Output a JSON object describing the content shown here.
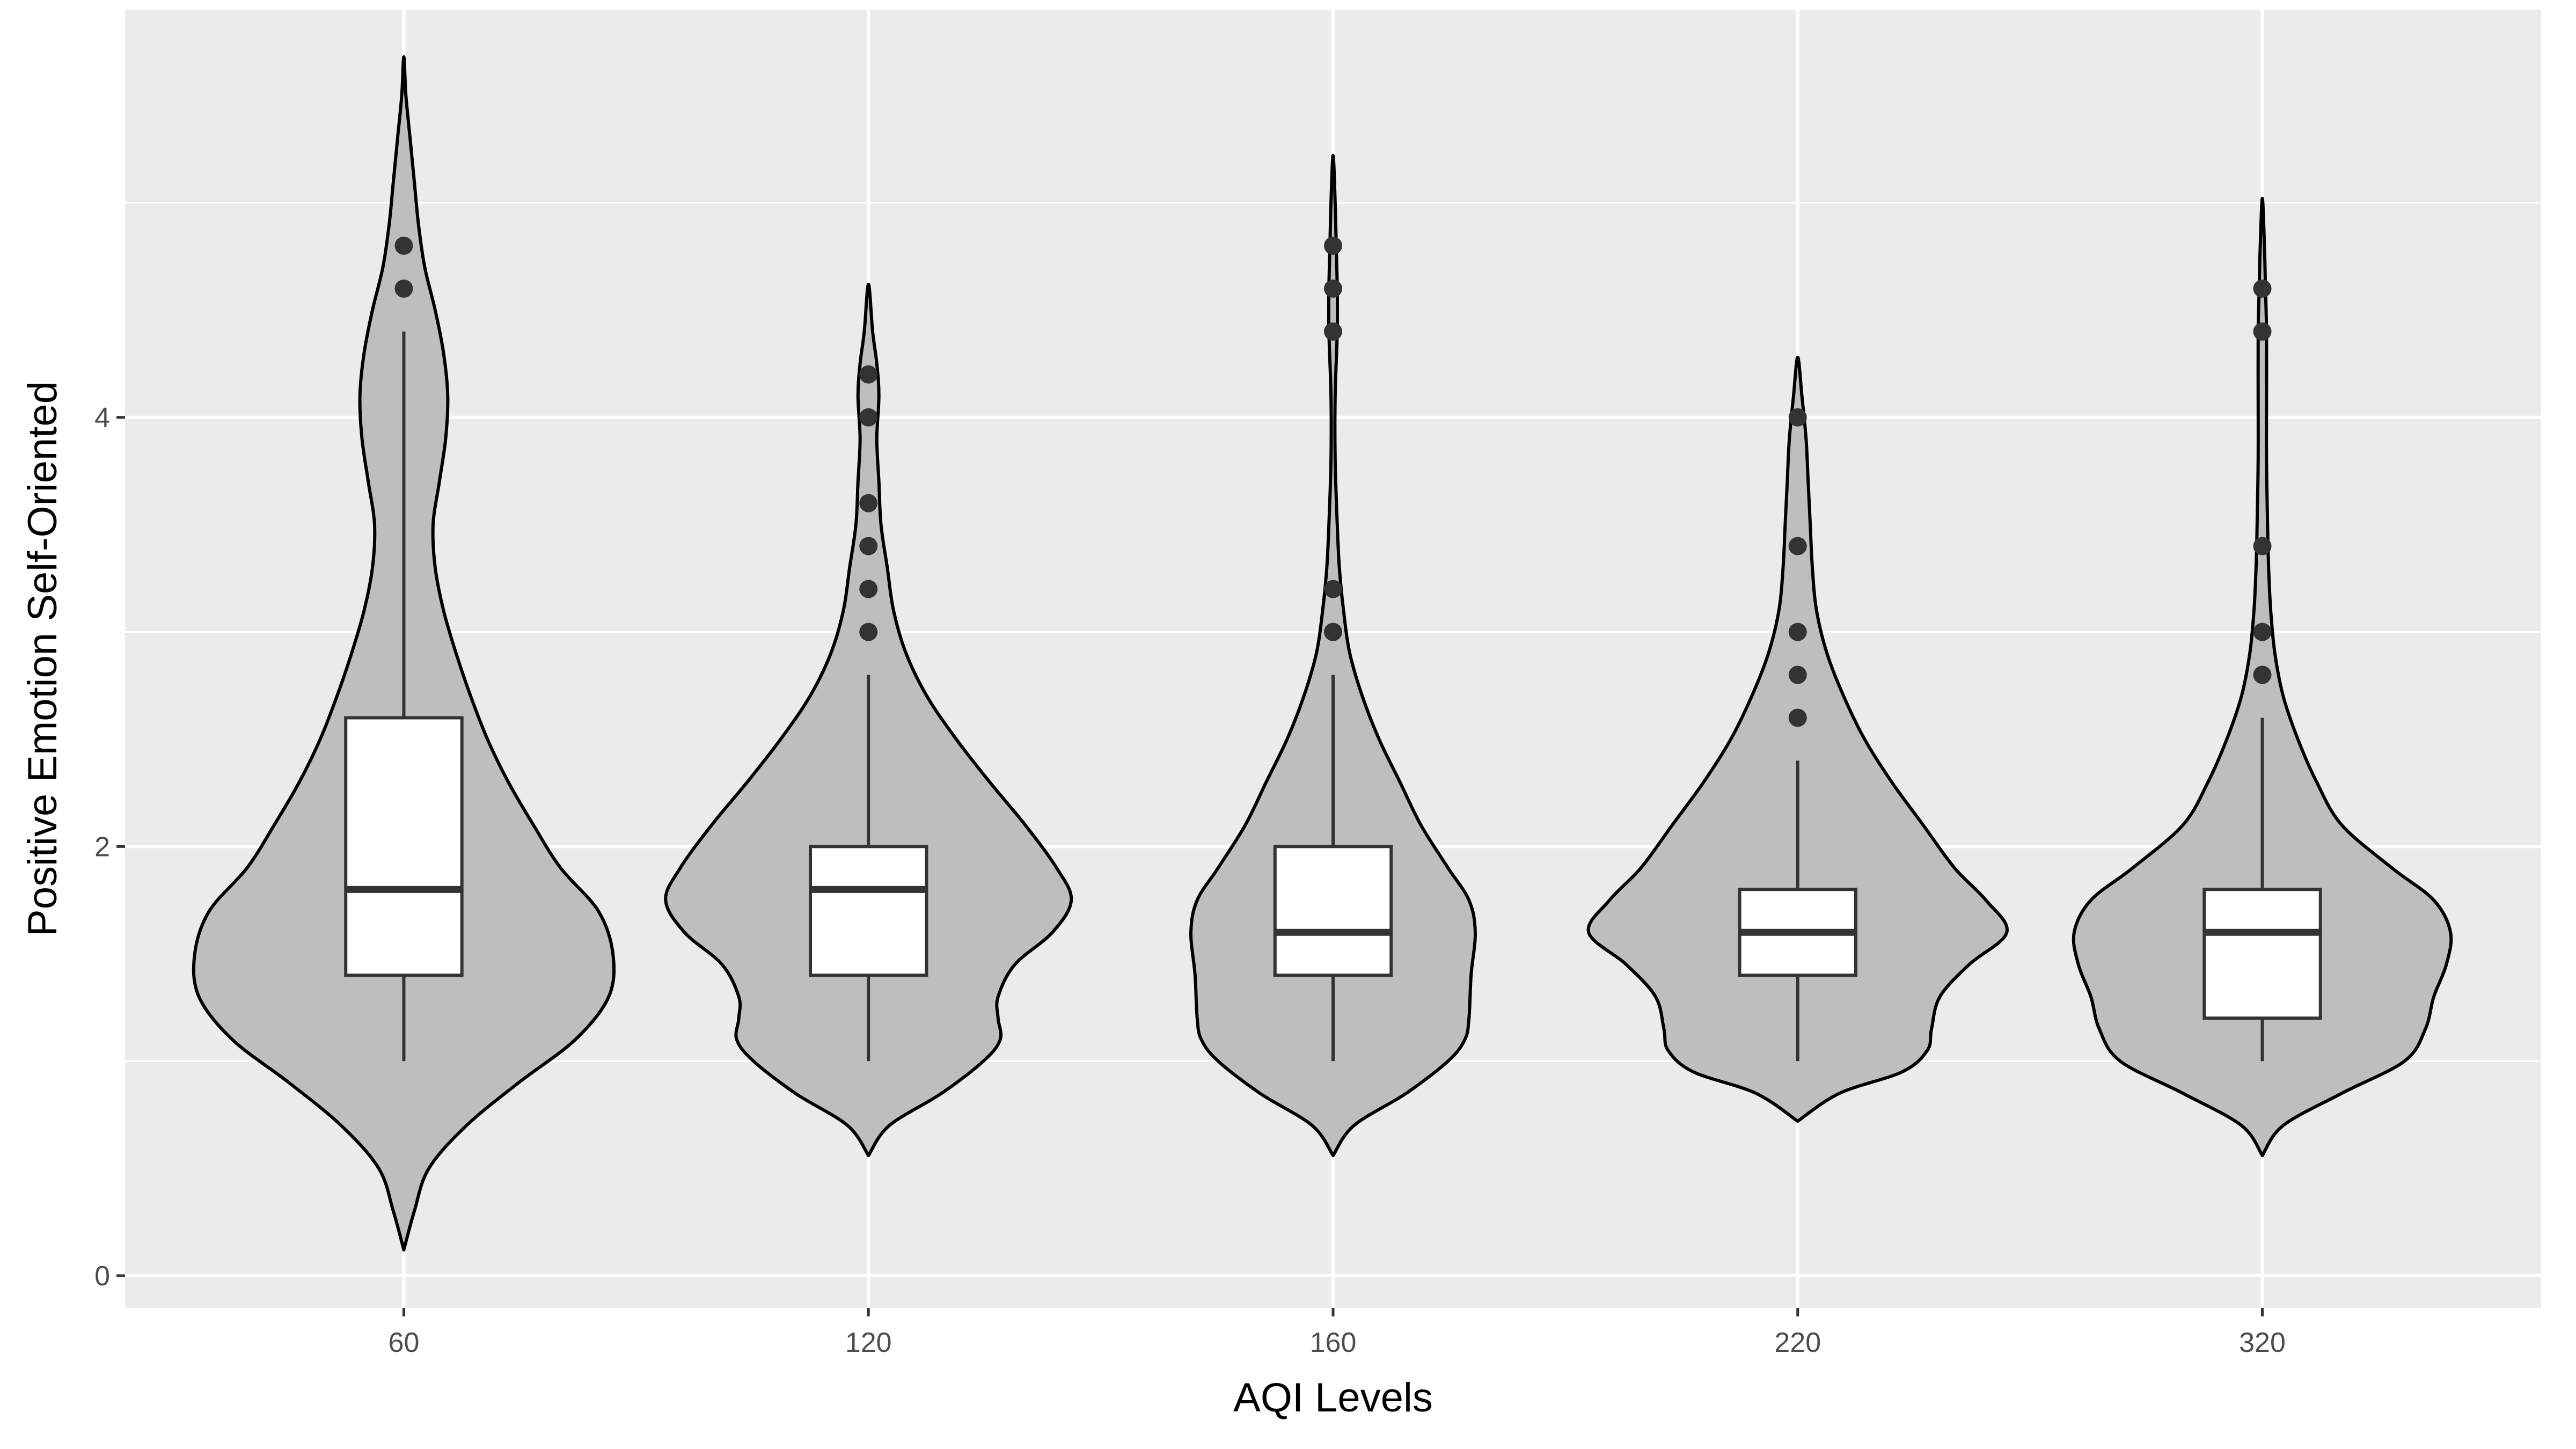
{
  "chart_data": {
    "type": "violin",
    "xlabel": "AQI Levels",
    "ylabel": "Positive Emotion Self-Oriented",
    "categories": [
      "60",
      "120",
      "160",
      "220",
      "320"
    ],
    "y_ticks": [
      "0",
      "2",
      "4"
    ],
    "y_tick_values": [
      0,
      2,
      4
    ],
    "ylim": [
      -0.15,
      5.9
    ],
    "grid": true,
    "panel_background": "#ebebeb",
    "violin_fill": "#bebebe",
    "box_fill": "#ffffff",
    "outline_color": "#000000",
    "outlier_color": "#333333",
    "groups": [
      {
        "category": "60",
        "violin_profile": [
          [
            0.12,
            0.0
          ],
          [
            0.3,
            0.05
          ],
          [
            0.5,
            0.12
          ],
          [
            0.7,
            0.3
          ],
          [
            0.9,
            0.55
          ],
          [
            1.1,
            0.82
          ],
          [
            1.3,
            0.98
          ],
          [
            1.5,
            1.0
          ],
          [
            1.7,
            0.93
          ],
          [
            1.9,
            0.75
          ],
          [
            2.1,
            0.62
          ],
          [
            2.3,
            0.5
          ],
          [
            2.5,
            0.4
          ],
          [
            2.7,
            0.32
          ],
          [
            2.9,
            0.25
          ],
          [
            3.1,
            0.19
          ],
          [
            3.3,
            0.15
          ],
          [
            3.5,
            0.14
          ],
          [
            3.7,
            0.17
          ],
          [
            3.9,
            0.2
          ],
          [
            4.1,
            0.21
          ],
          [
            4.3,
            0.19
          ],
          [
            4.5,
            0.15
          ],
          [
            4.7,
            0.1
          ],
          [
            4.9,
            0.07
          ],
          [
            5.1,
            0.05
          ],
          [
            5.3,
            0.03
          ],
          [
            5.5,
            0.01
          ],
          [
            5.68,
            0.0
          ]
        ],
        "box": {
          "whisker_low": 1.0,
          "q1": 1.4,
          "median": 1.8,
          "q3": 2.6,
          "whisker_high": 4.4
        },
        "outliers": [
          4.6,
          4.8
        ]
      },
      {
        "category": "120",
        "violin_profile": [
          [
            0.56,
            0.0
          ],
          [
            0.7,
            0.1
          ],
          [
            0.85,
            0.35
          ],
          [
            1.0,
            0.55
          ],
          [
            1.1,
            0.63
          ],
          [
            1.2,
            0.62
          ],
          [
            1.3,
            0.62
          ],
          [
            1.45,
            0.7
          ],
          [
            1.6,
            0.88
          ],
          [
            1.75,
            0.97
          ],
          [
            1.9,
            0.9
          ],
          [
            2.1,
            0.75
          ],
          [
            2.3,
            0.58
          ],
          [
            2.5,
            0.42
          ],
          [
            2.7,
            0.28
          ],
          [
            2.9,
            0.18
          ],
          [
            3.1,
            0.12
          ],
          [
            3.3,
            0.09
          ],
          [
            3.5,
            0.06
          ],
          [
            3.7,
            0.05
          ],
          [
            3.9,
            0.04
          ],
          [
            4.1,
            0.05
          ],
          [
            4.25,
            0.04
          ],
          [
            4.4,
            0.02
          ],
          [
            4.62,
            0.0
          ]
        ],
        "box": {
          "whisker_low": 1.0,
          "q1": 1.4,
          "median": 1.8,
          "q3": 2.0,
          "whisker_high": 2.8
        },
        "outliers": [
          3.0,
          3.2,
          3.4,
          3.6,
          4.0,
          4.2
        ]
      },
      {
        "category": "160",
        "violin_profile": [
          [
            0.56,
            0.0
          ],
          [
            0.7,
            0.1
          ],
          [
            0.85,
            0.35
          ],
          [
            1.0,
            0.55
          ],
          [
            1.1,
            0.63
          ],
          [
            1.2,
            0.65
          ],
          [
            1.4,
            0.66
          ],
          [
            1.6,
            0.68
          ],
          [
            1.75,
            0.65
          ],
          [
            1.9,
            0.55
          ],
          [
            2.1,
            0.42
          ],
          [
            2.3,
            0.32
          ],
          [
            2.5,
            0.22
          ],
          [
            2.7,
            0.14
          ],
          [
            2.9,
            0.08
          ],
          [
            3.1,
            0.05
          ],
          [
            3.3,
            0.03
          ],
          [
            3.5,
            0.02
          ],
          [
            3.8,
            0.01
          ],
          [
            4.1,
            0.01
          ],
          [
            4.4,
            0.02
          ],
          [
            4.6,
            0.02
          ],
          [
            4.8,
            0.015
          ],
          [
            5.0,
            0.01
          ],
          [
            5.22,
            0.0
          ]
        ],
        "box": {
          "whisker_low": 1.0,
          "q1": 1.4,
          "median": 1.6,
          "q3": 2.0,
          "whisker_high": 2.8
        },
        "outliers": [
          3.0,
          3.2,
          4.4,
          4.6,
          4.8
        ]
      },
      {
        "category": "220",
        "violin_profile": [
          [
            0.72,
            0.0
          ],
          [
            0.85,
            0.2
          ],
          [
            0.95,
            0.5
          ],
          [
            1.05,
            0.62
          ],
          [
            1.15,
            0.64
          ],
          [
            1.3,
            0.68
          ],
          [
            1.45,
            0.82
          ],
          [
            1.6,
            1.0
          ],
          [
            1.75,
            0.9
          ],
          [
            1.9,
            0.75
          ],
          [
            2.1,
            0.6
          ],
          [
            2.3,
            0.45
          ],
          [
            2.5,
            0.32
          ],
          [
            2.7,
            0.22
          ],
          [
            2.9,
            0.14
          ],
          [
            3.1,
            0.09
          ],
          [
            3.3,
            0.07
          ],
          [
            3.5,
            0.06
          ],
          [
            3.7,
            0.05
          ],
          [
            3.9,
            0.04
          ],
          [
            4.1,
            0.02
          ],
          [
            4.28,
            0.0
          ]
        ],
        "box": {
          "whisker_low": 1.0,
          "q1": 1.4,
          "median": 1.6,
          "q3": 1.8,
          "whisker_high": 2.4
        },
        "outliers": [
          2.6,
          2.8,
          3.0,
          3.4,
          4.0
        ]
      },
      {
        "category": "320",
        "violin_profile": [
          [
            0.56,
            0.0
          ],
          [
            0.7,
            0.1
          ],
          [
            0.85,
            0.38
          ],
          [
            1.0,
            0.68
          ],
          [
            1.15,
            0.78
          ],
          [
            1.3,
            0.82
          ],
          [
            1.45,
            0.88
          ],
          [
            1.6,
            0.9
          ],
          [
            1.75,
            0.82
          ],
          [
            1.9,
            0.62
          ],
          [
            2.1,
            0.38
          ],
          [
            2.3,
            0.26
          ],
          [
            2.5,
            0.17
          ],
          [
            2.7,
            0.1
          ],
          [
            2.9,
            0.06
          ],
          [
            3.1,
            0.04
          ],
          [
            3.3,
            0.03
          ],
          [
            3.5,
            0.025
          ],
          [
            3.8,
            0.02
          ],
          [
            4.1,
            0.02
          ],
          [
            4.4,
            0.02
          ],
          [
            4.6,
            0.015
          ],
          [
            4.8,
            0.01
          ],
          [
            5.02,
            0.0
          ]
        ],
        "box": {
          "whisker_low": 1.0,
          "q1": 1.2,
          "median": 1.6,
          "q3": 1.8,
          "whisker_high": 2.6
        },
        "outliers": [
          2.8,
          3.0,
          3.4,
          4.4,
          4.6
        ]
      }
    ]
  }
}
